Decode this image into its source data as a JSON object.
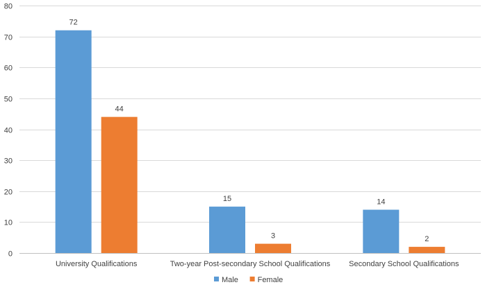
{
  "chart_data": {
    "type": "bar",
    "title": "",
    "xlabel": "",
    "ylabel": "",
    "categories": [
      "University Qualifications",
      "Two-year Post-secondary School Qualifications",
      "Secondary School Qualifications"
    ],
    "series": [
      {
        "name": "Male",
        "values": [
          72,
          15,
          14
        ],
        "color": "#5B9BD5"
      },
      {
        "name": "Female",
        "values": [
          44,
          3,
          2
        ],
        "color": "#ED7D31"
      }
    ],
    "ylim": [
      0,
      80
    ],
    "yticks": [
      0,
      10,
      20,
      30,
      40,
      50,
      60,
      70,
      80
    ],
    "grid": true,
    "legend_position": "bottom-center"
  }
}
